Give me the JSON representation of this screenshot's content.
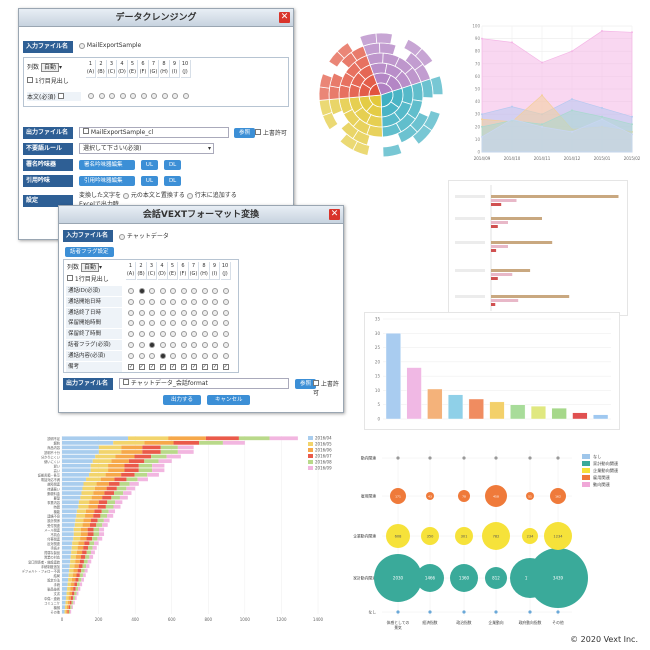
{
  "window1": {
    "title": "データクレンジング",
    "input_label": "入力ファイル名",
    "input_file": "MailExportSample",
    "col_label": "列数",
    "col_select": "自動",
    "col_nums": [
      "1",
      "2",
      "3",
      "4",
      "5",
      "6",
      "7",
      "8",
      "9",
      "10"
    ],
    "col_letters": [
      "(A)",
      "(B)",
      "(C)",
      "(D)",
      "(E)",
      "(F)",
      "(G)",
      "(H)",
      "(I)",
      "(J)"
    ],
    "first_row": "1行目見出し",
    "body_required": "本文(必須)",
    "output_label": "出力ファイル名",
    "output_file": "MailExportSample_cl",
    "browse": "参照",
    "overwrite": "上書許可",
    "rule_label": "不要語ルール",
    "rule_select": "選択して下さい(必須)",
    "sig_label": "署名吟味器",
    "sig_btn": "署名吟味器編集",
    "ul": "UL",
    "dl": "DL",
    "quote_label": "引用吟味",
    "quote_btn": "引用吟味器編集",
    "setting_label": "設定",
    "setting_text": "変換した文字を",
    "opt1": "元の本文と置換する",
    "opt2": "行末に追加する",
    "setting_extra": "Excelで出力時"
  },
  "window2": {
    "title": "会話VEXTフォーマット変換",
    "input_label": "入力ファイル名",
    "input_file": "チャットデータ",
    "flag_btn": "話者フラグ設定",
    "col_label": "列数",
    "col_select": "自動",
    "first_row": "1行目見出し",
    "col_nums": [
      "1",
      "2",
      "3",
      "4",
      "5",
      "6",
      "7",
      "8",
      "9",
      "10"
    ],
    "col_letters": [
      "(A)",
      "(B)",
      "(C)",
      "(D)",
      "(E)",
      "(F)",
      "(G)",
      "(H)",
      "(I)",
      "(J)"
    ],
    "rows": [
      "通話ID(必須)",
      "通話開始日時",
      "通話終了日時",
      "保留開始時間",
      "保留終了時間",
      "話者フラグ(必須)",
      "通話内容(必須)",
      "備考"
    ],
    "output_label": "出力ファイル名",
    "output_file": "チャットデータ_会話format",
    "browse": "参照",
    "overwrite": "上書許可",
    "run_btn": "出力する",
    "cancel_btn": "キャンセル"
  },
  "colors": {
    "purple": "#b07fc2",
    "teal": "#3fb0c2",
    "yellow": "#e3c93a",
    "red": "#e2533e",
    "green": "#45a86e",
    "pink": "#f0b8e0",
    "blue": "#86b8ea",
    "orange": "#f08c3a",
    "bubble_teal": "#3aaa9a",
    "bubble_yellow": "#f6e23a",
    "bubble_orange": "#ef7a3a"
  },
  "area_chart": {
    "x_labels": [
      "2014/09",
      "2014/10",
      "2014/11",
      "2014/12",
      "2015/01",
      "2015/02"
    ],
    "y_ticks": [
      "100",
      "90",
      "80",
      "70",
      "60",
      "50",
      "40",
      "30",
      "20",
      "10",
      "0"
    ]
  },
  "bar_chart": {
    "y_ticks": [
      "35",
      "30",
      "25",
      "20",
      "15",
      "10",
      "5",
      "0"
    ],
    "values": [
      30,
      18,
      10.5,
      8.5,
      7,
      6,
      5,
      4.5,
      3.8,
      2.2,
      1.5
    ]
  },
  "bubble_chart": {
    "legend": [
      "なし",
      "家計動向関連",
      "企業動向関連",
      "雇用関連",
      "動向関連"
    ],
    "rows": [
      "動向関連",
      "雇用関連",
      "企業動向関連",
      "家計動向関連",
      "なし"
    ],
    "cols": [
      "体感としての\n景気",
      "経済指数",
      "政治指数",
      "企業動向",
      "政府動向指数",
      "その他"
    ],
    "teal_values": [
      "2030",
      "1466",
      "1360",
      "812",
      "1769",
      "3439"
    ],
    "yellow_values": [
      "608",
      "350",
      "301",
      "782",
      "234",
      "1234"
    ],
    "orange_values": [
      "171",
      "43",
      "78",
      "458",
      "51",
      "162"
    ]
  },
  "stacked_chart": {
    "legend": [
      "2016/04",
      "2016/05",
      "2016/06",
      "2016/07",
      "2016/08",
      "2016/09"
    ],
    "x_ticks": [
      "0",
      "200",
      "400",
      "600",
      "800",
      "1000",
      "1200",
      "1400"
    ],
    "categories": [
      "説明不足",
      "解約",
      "商品内容",
      "説明不十分",
      "分かりにくい",
      "使いにくい",
      "遅い",
      "高い",
      "証拠書類・各写",
      "電話対応不満",
      "故障関連",
      "待遇悪い",
      "郵便料金",
      "要望",
      "事業内容",
      "時間",
      "機能",
      "連絡不良",
      "設計関係",
      "受付関連",
      "メール関連",
      "不具合",
      "付帯関連",
      "反対関連",
      "手続き",
      "貧弱な製品",
      "営業の対応",
      "窓口関係者・施設連結",
      "手続制度追加",
      "デフォルト・フォロー不満",
      "結局",
      "設定方法",
      "手続",
      "製品技術",
      "文書",
      "中傷・連続",
      "コミュニケ",
      "機械",
      "その他"
    ],
    "totals": [
      1290,
      1000,
      720,
      720,
      650,
      600,
      560,
      560,
      530,
      470,
      420,
      400,
      380,
      360,
      330,
      320,
      290,
      280,
      260,
      250,
      230,
      230,
      220,
      200,
      190,
      180,
      170,
      160,
      150,
      140,
      130,
      120,
      110,
      100,
      90,
      80,
      70,
      60,
      50
    ]
  },
  "copyright": "© 2020 Vext Inc."
}
